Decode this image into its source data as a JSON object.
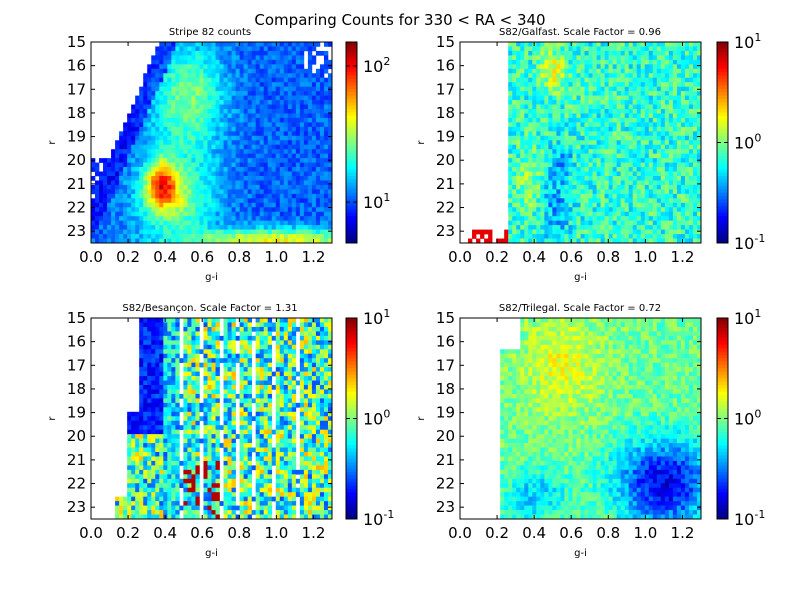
{
  "figure": {
    "suptitle": "Comparing Counts for 330 < RA < 340"
  },
  "chart_data": [
    {
      "type": "heatmap",
      "title": "Stripe 82 counts",
      "xlabel": "g-i",
      "ylabel": "r",
      "xlim": [
        0.0,
        1.3
      ],
      "ylim": [
        23.5,
        15
      ],
      "x_ticks": [
        "0.0",
        "0.2",
        "0.4",
        "0.6",
        "0.8",
        "1.0",
        "1.2"
      ],
      "y_ticks": [
        "15",
        "16",
        "17",
        "18",
        "19",
        "20",
        "21",
        "22",
        "23"
      ],
      "colorbar": {
        "scale": "log",
        "range": [
          5,
          150
        ],
        "ticks": [
          {
            "base": "10",
            "exp": "1",
            "value": 10
          },
          {
            "base": "10",
            "exp": "2",
            "value": 100
          }
        ]
      },
      "colormap": "jet",
      "dense_regions": [
        {
          "g_i": 0.38,
          "r": 21.0,
          "level": "peak"
        },
        {
          "g_i": 1.0,
          "r": 23.3,
          "level": "high"
        },
        {
          "g_i": 0.55,
          "r": 16.5,
          "level": "medium"
        }
      ]
    },
    {
      "type": "heatmap",
      "title": "S82/Galfast. Scale Factor = 0.96",
      "xlabel": "g-i",
      "ylabel": "r",
      "xlim": [
        0.0,
        1.3
      ],
      "ylim": [
        23.5,
        15
      ],
      "x_ticks": [
        "0.0",
        "0.2",
        "0.4",
        "0.6",
        "0.8",
        "1.0",
        "1.2"
      ],
      "y_ticks": [
        "15",
        "16",
        "17",
        "18",
        "19",
        "20",
        "21",
        "22",
        "23"
      ],
      "colorbar": {
        "scale": "log",
        "range": [
          0.1,
          10
        ],
        "ticks": [
          {
            "base": "10",
            "exp": "1",
            "value": 10
          },
          {
            "base": "10",
            "exp": "0",
            "value": 1
          },
          {
            "base": "10",
            "exp": "-1",
            "value": 0.1
          }
        ]
      },
      "colormap": "jet",
      "scale_factor": 0.96
    },
    {
      "type": "heatmap",
      "title": "S82/Besançon. Scale Factor = 1.31",
      "xlabel": "g-i",
      "ylabel": "r",
      "xlim": [
        0.0,
        1.3
      ],
      "ylim": [
        23.5,
        15
      ],
      "x_ticks": [
        "0.0",
        "0.2",
        "0.4",
        "0.6",
        "0.8",
        "1.0",
        "1.2"
      ],
      "y_ticks": [
        "15",
        "16",
        "17",
        "18",
        "19",
        "20",
        "21",
        "22",
        "23"
      ],
      "colorbar": {
        "scale": "log",
        "range": [
          0.1,
          10
        ],
        "ticks": [
          {
            "base": "10",
            "exp": "1",
            "value": 10
          },
          {
            "base": "10",
            "exp": "0",
            "value": 1
          },
          {
            "base": "10",
            "exp": "-1",
            "value": 0.1
          }
        ]
      },
      "colormap": "jet",
      "scale_factor": 1.31
    },
    {
      "type": "heatmap",
      "title": "S82/Trilegal. Scale Factor = 0.72",
      "xlabel": "g-i",
      "ylabel": "r",
      "xlim": [
        0.0,
        1.3
      ],
      "ylim": [
        23.5,
        15
      ],
      "x_ticks": [
        "0.0",
        "0.2",
        "0.4",
        "0.6",
        "0.8",
        "1.0",
        "1.2"
      ],
      "y_ticks": [
        "15",
        "16",
        "17",
        "18",
        "19",
        "20",
        "21",
        "22",
        "23"
      ],
      "colorbar": {
        "scale": "log",
        "range": [
          0.1,
          10
        ],
        "ticks": [
          {
            "base": "10",
            "exp": "1",
            "value": 10
          },
          {
            "base": "10",
            "exp": "0",
            "value": 1
          },
          {
            "base": "10",
            "exp": "-1",
            "value": 0.1
          }
        ]
      },
      "colormap": "jet",
      "scale_factor": 0.72
    }
  ]
}
